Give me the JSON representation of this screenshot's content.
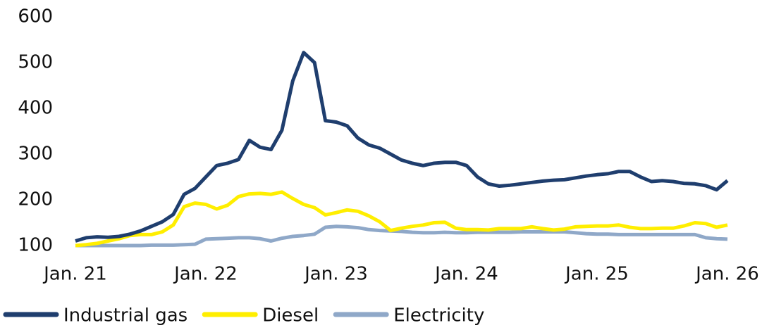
{
  "chart_data": {
    "type": "line",
    "categories": [
      "Jan. 21",
      null,
      null,
      null,
      null,
      null,
      null,
      null,
      null,
      null,
      null,
      null,
      "Jan. 22",
      null,
      null,
      null,
      null,
      null,
      null,
      null,
      null,
      null,
      null,
      null,
      "Jan. 23",
      null,
      null,
      null,
      null,
      null,
      null,
      null,
      null,
      null,
      null,
      null,
      "Jan. 24",
      null,
      null,
      null,
      null,
      null,
      null,
      null,
      null,
      null,
      null,
      null,
      "Jan. 25",
      null,
      null,
      null,
      null,
      null,
      null,
      null,
      null,
      null,
      null,
      null,
      "Jan. 26"
    ],
    "series": [
      {
        "name": "Industrial gas",
        "color": "#1f3e6e",
        "values": [
          110,
          117,
          119,
          118,
          120,
          125,
          132,
          142,
          152,
          168,
          212,
          225,
          250,
          275,
          280,
          288,
          330,
          315,
          310,
          352,
          460,
          522,
          500,
          373,
          370,
          362,
          335,
          320,
          313,
          300,
          287,
          280,
          275,
          280,
          282,
          282,
          275,
          250,
          235,
          230,
          232,
          235,
          238,
          241,
          243,
          244,
          248,
          252,
          255,
          257,
          262,
          262,
          250,
          240,
          242,
          240,
          236,
          235,
          231,
          222,
          242
        ]
      },
      {
        "name": "Diesel",
        "color": "#ffee00",
        "values": [
          100,
          102,
          105,
          110,
          115,
          122,
          124,
          124,
          130,
          145,
          185,
          193,
          190,
          180,
          188,
          207,
          213,
          214,
          212,
          217,
          203,
          190,
          183,
          167,
          172,
          178,
          175,
          165,
          152,
          133,
          138,
          142,
          145,
          150,
          151,
          138,
          135,
          135,
          134,
          137,
          137,
          137,
          141,
          137,
          134,
          136,
          141,
          142,
          143,
          143,
          145,
          140,
          137,
          137,
          138,
          138,
          143,
          150,
          148,
          140,
          145
        ]
      },
      {
        "name": "Electricity",
        "color": "#8fa8c8",
        "values": [
          100,
          100,
          100,
          100,
          100,
          100,
          100,
          101,
          101,
          101,
          102,
          103,
          114,
          115,
          116,
          117,
          117,
          115,
          110,
          116,
          120,
          122,
          125,
          140,
          142,
          141,
          139,
          135,
          133,
          132,
          131,
          129,
          128,
          128,
          129,
          128,
          128,
          129,
          129,
          129,
          129,
          130,
          130,
          130,
          130,
          130,
          128,
          126,
          125,
          125,
          124,
          124,
          124,
          124,
          124,
          124,
          124,
          124,
          117,
          115,
          114
        ]
      }
    ],
    "ylim": [
      100,
      600
    ],
    "yticks": [
      100,
      200,
      300,
      400,
      500,
      600
    ],
    "grid": false,
    "legend": "bottom-left"
  }
}
